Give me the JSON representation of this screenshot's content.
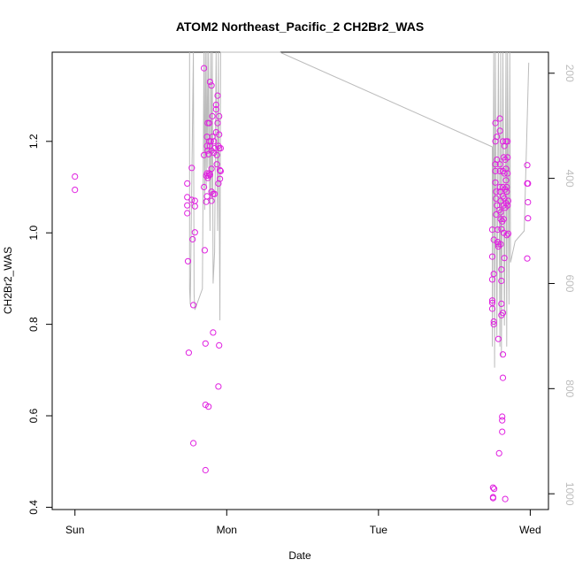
{
  "chart_data": {
    "type": "scatter",
    "title": "ATOM2 Northeast_Pacific_2 CH2Br2_WAS",
    "xlabel": "Date",
    "ylabel": "CH2Br2_WAS",
    "x_ticks": [
      "Sun",
      "Mon",
      "Tue",
      "Wed"
    ],
    "xlim_days": [
      -0.15,
      3.12
    ],
    "ylim": [
      0.395,
      1.395
    ],
    "y_ticks": [
      0.4,
      0.6,
      0.8,
      1.0,
      1.2
    ],
    "y_tick_labels": [
      "0.4",
      "0.6",
      "0.8",
      "1.0",
      "1.2"
    ],
    "y2_ticks": [
      200,
      400,
      600,
      800,
      1000
    ],
    "y2_tick_labels": [
      "200",
      "400",
      "600",
      "800",
      "1000"
    ],
    "y2lim": [
      1030,
      160
    ],
    "y2_reversed": true,
    "marker_color": "#e020e0",
    "line_color": "#bbbbbb",
    "series": [
      {
        "values": [
          {
            "x": 0.0,
            "y": 1.123
          },
          {
            "x": 0.0,
            "y": 1.094
          },
          {
            "x": 0.74,
            "y": 1.108
          },
          {
            "x": 0.74,
            "y": 1.078
          },
          {
            "x": 0.74,
            "y": 1.06
          },
          {
            "x": 0.74,
            "y": 1.043
          },
          {
            "x": 0.745,
            "y": 0.938
          },
          {
            "x": 0.75,
            "y": 0.738
          },
          {
            "x": 0.77,
            "y": 1.142
          },
          {
            "x": 0.77,
            "y": 1.072
          },
          {
            "x": 0.775,
            "y": 0.986
          },
          {
            "x": 0.78,
            "y": 0.842
          },
          {
            "x": 0.78,
            "y": 0.54
          },
          {
            "x": 0.79,
            "y": 1.07
          },
          {
            "x": 0.79,
            "y": 1.058
          },
          {
            "x": 0.79,
            "y": 1.001
          },
          {
            "x": 0.85,
            "y": 1.36
          },
          {
            "x": 0.85,
            "y": 1.17
          },
          {
            "x": 0.85,
            "y": 1.1
          },
          {
            "x": 0.855,
            "y": 0.962
          },
          {
            "x": 0.86,
            "y": 0.758
          },
          {
            "x": 0.86,
            "y": 0.624
          },
          {
            "x": 0.86,
            "y": 0.481
          },
          {
            "x": 0.865,
            "y": 1.125
          },
          {
            "x": 0.865,
            "y": 1.068
          },
          {
            "x": 0.87,
            "y": 1.21
          },
          {
            "x": 0.87,
            "y": 1.19
          },
          {
            "x": 0.87,
            "y": 1.13
          },
          {
            "x": 0.87,
            "y": 1.08
          },
          {
            "x": 0.875,
            "y": 1.24
          },
          {
            "x": 0.875,
            "y": 1.18
          },
          {
            "x": 0.875,
            "y": 1.12
          },
          {
            "x": 0.88,
            "y": 1.172
          },
          {
            "x": 0.88,
            "y": 1.125
          },
          {
            "x": 0.88,
            "y": 0.62
          },
          {
            "x": 0.885,
            "y": 1.24
          },
          {
            "x": 0.885,
            "y": 1.2
          },
          {
            "x": 0.885,
            "y": 1.13
          },
          {
            "x": 0.89,
            "y": 1.33
          },
          {
            "x": 0.89,
            "y": 1.19
          },
          {
            "x": 0.89,
            "y": 1.127
          },
          {
            "x": 0.895,
            "y": 1.2
          },
          {
            "x": 0.9,
            "y": 1.322
          },
          {
            "x": 0.9,
            "y": 1.18
          },
          {
            "x": 0.9,
            "y": 1.14
          },
          {
            "x": 0.9,
            "y": 1.09
          },
          {
            "x": 0.9,
            "y": 1.07
          },
          {
            "x": 0.905,
            "y": 1.255
          },
          {
            "x": 0.905,
            "y": 1.21
          },
          {
            "x": 0.91,
            "y": 1.085
          },
          {
            "x": 0.91,
            "y": 0.782
          },
          {
            "x": 0.915,
            "y": 1.2
          },
          {
            "x": 0.915,
            "y": 1.175
          },
          {
            "x": 0.92,
            "y": 1.185
          },
          {
            "x": 0.92,
            "y": 1.085
          },
          {
            "x": 0.93,
            "y": 1.28
          },
          {
            "x": 0.93,
            "y": 1.27
          },
          {
            "x": 0.93,
            "y": 1.22
          },
          {
            "x": 0.935,
            "y": 1.17
          },
          {
            "x": 0.935,
            "y": 1.15
          },
          {
            "x": 0.94,
            "y": 1.3
          },
          {
            "x": 0.94,
            "y": 1.24
          },
          {
            "x": 0.945,
            "y": 1.19
          },
          {
            "x": 0.945,
            "y": 1.108
          },
          {
            "x": 0.945,
            "y": 0.664
          },
          {
            "x": 0.95,
            "y": 1.255
          },
          {
            "x": 0.95,
            "y": 1.215
          },
          {
            "x": 0.95,
            "y": 1.185
          },
          {
            "x": 0.95,
            "y": 0.754
          },
          {
            "x": 0.955,
            "y": 1.137
          },
          {
            "x": 0.955,
            "y": 1.118
          },
          {
            "x": 0.96,
            "y": 1.185
          },
          {
            "x": 0.96,
            "y": 1.135
          },
          {
            "x": 2.75,
            "y": 1.007
          },
          {
            "x": 2.75,
            "y": 0.948
          },
          {
            "x": 2.75,
            "y": 0.898
          },
          {
            "x": 2.75,
            "y": 0.852
          },
          {
            "x": 2.75,
            "y": 0.847
          },
          {
            "x": 2.75,
            "y": 0.834
          },
          {
            "x": 2.755,
            "y": 0.443
          },
          {
            "x": 2.755,
            "y": 0.422
          },
          {
            "x": 2.755,
            "y": 0.42
          },
          {
            "x": 2.76,
            "y": 0.985
          },
          {
            "x": 2.76,
            "y": 0.91
          },
          {
            "x": 2.76,
            "y": 0.806
          },
          {
            "x": 2.76,
            "y": 0.8
          },
          {
            "x": 2.762,
            "y": 0.44
          },
          {
            "x": 2.77,
            "y": 1.24
          },
          {
            "x": 2.77,
            "y": 1.2
          },
          {
            "x": 2.77,
            "y": 1.15
          },
          {
            "x": 2.77,
            "y": 1.135
          },
          {
            "x": 2.77,
            "y": 1.11
          },
          {
            "x": 2.775,
            "y": 1.09
          },
          {
            "x": 2.775,
            "y": 1.075
          },
          {
            "x": 2.775,
            "y": 1.04
          },
          {
            "x": 2.78,
            "y": 1.21
          },
          {
            "x": 2.78,
            "y": 1.16
          },
          {
            "x": 2.78,
            "y": 1.06
          },
          {
            "x": 2.785,
            "y": 1.007
          },
          {
            "x": 2.785,
            "y": 0.98
          },
          {
            "x": 2.79,
            "y": 0.975
          },
          {
            "x": 2.79,
            "y": 0.97
          },
          {
            "x": 2.79,
            "y": 0.768
          },
          {
            "x": 2.795,
            "y": 1.05
          },
          {
            "x": 2.795,
            "y": 0.518
          },
          {
            "x": 2.8,
            "y": 1.25
          },
          {
            "x": 2.8,
            "y": 1.223
          },
          {
            "x": 2.8,
            "y": 1.15
          },
          {
            "x": 2.8,
            "y": 1.135
          },
          {
            "x": 2.8,
            "y": 1.1
          },
          {
            "x": 2.8,
            "y": 1.09
          },
          {
            "x": 2.805,
            "y": 1.07
          },
          {
            "x": 2.805,
            "y": 1.045
          },
          {
            "x": 2.805,
            "y": 1.03
          },
          {
            "x": 2.805,
            "y": 0.975
          },
          {
            "x": 2.81,
            "y": 1.008
          },
          {
            "x": 2.81,
            "y": 0.92
          },
          {
            "x": 2.81,
            "y": 0.895
          },
          {
            "x": 2.81,
            "y": 0.845
          },
          {
            "x": 2.81,
            "y": 0.82
          },
          {
            "x": 2.815,
            "y": 1.025
          },
          {
            "x": 2.815,
            "y": 0.598
          },
          {
            "x": 2.815,
            "y": 0.59
          },
          {
            "x": 2.815,
            "y": 0.565
          },
          {
            "x": 2.82,
            "y": 1.2
          },
          {
            "x": 2.82,
            "y": 1.135
          },
          {
            "x": 2.82,
            "y": 1.1
          },
          {
            "x": 2.82,
            "y": 1.08
          },
          {
            "x": 2.82,
            "y": 0.825
          },
          {
            "x": 2.82,
            "y": 0.734
          },
          {
            "x": 2.82,
            "y": 0.683
          },
          {
            "x": 2.825,
            "y": 1.165
          },
          {
            "x": 2.825,
            "y": 1.06
          },
          {
            "x": 2.825,
            "y": 1.03
          },
          {
            "x": 2.825,
            "y": 1.0
          },
          {
            "x": 2.83,
            "y": 1.19
          },
          {
            "x": 2.83,
            "y": 1.13
          },
          {
            "x": 2.83,
            "y": 1.075
          },
          {
            "x": 2.83,
            "y": 0.945
          },
          {
            "x": 2.835,
            "y": 1.16
          },
          {
            "x": 2.835,
            "y": 1.095
          },
          {
            "x": 2.835,
            "y": 1.055
          },
          {
            "x": 2.835,
            "y": 0.418
          },
          {
            "x": 2.84,
            "y": 1.2
          },
          {
            "x": 2.84,
            "y": 1.14
          },
          {
            "x": 2.84,
            "y": 1.115
          },
          {
            "x": 2.84,
            "y": 1.065
          },
          {
            "x": 2.845,
            "y": 1.1
          },
          {
            "x": 2.845,
            "y": 1.09
          },
          {
            "x": 2.845,
            "y": 0.995
          },
          {
            "x": 2.85,
            "y": 1.2
          },
          {
            "x": 2.85,
            "y": 1.165
          },
          {
            "x": 2.85,
            "y": 1.13
          },
          {
            "x": 2.85,
            "y": 1.06
          },
          {
            "x": 2.855,
            "y": 1.07
          },
          {
            "x": 2.855,
            "y": 0.998
          },
          {
            "x": 2.98,
            "y": 1.148
          },
          {
            "x": 2.98,
            "y": 1.108
          },
          {
            "x": 2.98,
            "y": 0.944
          },
          {
            "x": 2.985,
            "y": 1.108
          },
          {
            "x": 2.985,
            "y": 1.067
          },
          {
            "x": 2.985,
            "y": 1.032
          }
        ]
      }
    ],
    "altitude_line": [
      {
        "x": 0.755,
        "y2": 160
      },
      {
        "x": 0.755,
        "y2": 610
      },
      {
        "x": 0.76,
        "y2": 640
      },
      {
        "x": 0.78,
        "y2": 160
      },
      {
        "x": 0.785,
        "y2": 620
      },
      {
        "x": 0.79,
        "y2": 650
      },
      {
        "x": 0.84,
        "y2": 610
      },
      {
        "x": 0.85,
        "y2": 160
      },
      {
        "x": 0.855,
        "y2": 460
      },
      {
        "x": 0.86,
        "y2": 160
      },
      {
        "x": 0.865,
        "y2": 420
      },
      {
        "x": 0.87,
        "y2": 160
      },
      {
        "x": 0.875,
        "y2": 380
      },
      {
        "x": 0.88,
        "y2": 160
      },
      {
        "x": 0.89,
        "y2": 500
      },
      {
        "x": 0.895,
        "y2": 160
      },
      {
        "x": 0.9,
        "y2": 440
      },
      {
        "x": 0.905,
        "y2": 160
      },
      {
        "x": 0.91,
        "y2": 600
      },
      {
        "x": 0.92,
        "y2": 540
      },
      {
        "x": 0.93,
        "y2": 160
      },
      {
        "x": 0.94,
        "y2": 500
      },
      {
        "x": 0.945,
        "y2": 160
      },
      {
        "x": 0.955,
        "y2": 670
      },
      {
        "x": 0.96,
        "y2": 160
      },
      {
        "x": 1.35,
        "y2": 160
      },
      {
        "x": 2.75,
        "y2": 340
      },
      {
        "x": 2.75,
        "y2": 720
      },
      {
        "x": 2.76,
        "y2": 160
      },
      {
        "x": 2.765,
        "y2": 760
      },
      {
        "x": 2.77,
        "y2": 160
      },
      {
        "x": 2.78,
        "y2": 700
      },
      {
        "x": 2.79,
        "y2": 160
      },
      {
        "x": 2.8,
        "y2": 720
      },
      {
        "x": 2.805,
        "y2": 160
      },
      {
        "x": 2.81,
        "y2": 740
      },
      {
        "x": 2.82,
        "y2": 160
      },
      {
        "x": 2.83,
        "y2": 680
      },
      {
        "x": 2.84,
        "y2": 160
      },
      {
        "x": 2.845,
        "y2": 720
      },
      {
        "x": 2.85,
        "y2": 160
      },
      {
        "x": 2.86,
        "y2": 640
      },
      {
        "x": 2.865,
        "y2": 160
      },
      {
        "x": 2.87,
        "y2": 560
      },
      {
        "x": 2.9,
        "y2": 520
      },
      {
        "x": 2.96,
        "y2": 500
      },
      {
        "x": 2.99,
        "y2": 180
      }
    ]
  }
}
